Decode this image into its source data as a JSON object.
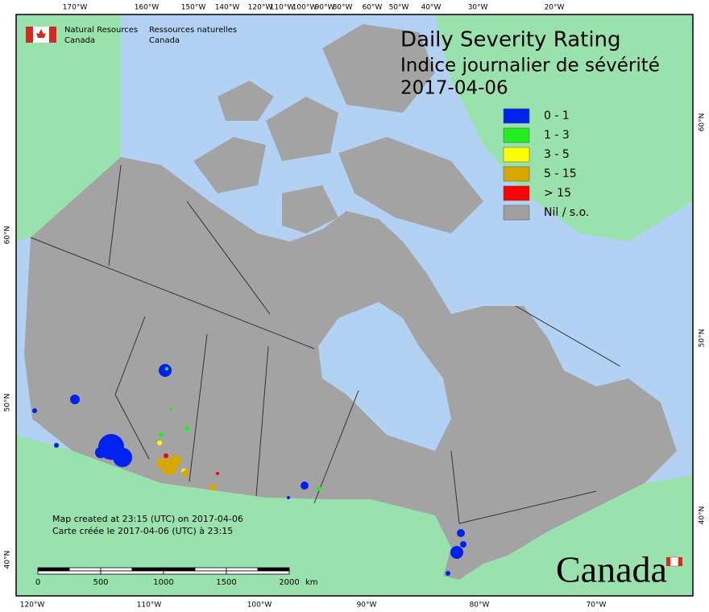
{
  "header": {
    "agency_en": [
      "Natural Resources",
      "Canada"
    ],
    "agency_fr": [
      "Ressources naturelles",
      "Canada"
    ]
  },
  "title": [
    "Daily Severity Rating",
    "Indice journalier de sévérité",
    "2017-04-06"
  ],
  "legend": [
    {
      "label": "0 - 1",
      "color": "#0022ee"
    },
    {
      "label": "1 - 3",
      "color": "#22ee22"
    },
    {
      "label": "3 - 5",
      "color": "#ffff00"
    },
    {
      "label": "5 - 15",
      "color": "#d8a800"
    },
    {
      "label": "> 15",
      "color": "#ff0000"
    },
    {
      "label": "Nil / s.o.",
      "color": "#a0a0a0"
    }
  ],
  "top_longitudes": [
    "170°W",
    "160°W",
    "150°W",
    "140°W",
    "120°W",
    "110°W",
    "100°W",
    "90°W",
    "80°W",
    "60°W",
    "50°W",
    "40°W",
    "30°W",
    "20°W"
  ],
  "bottom_longitudes": [
    "120°W",
    "110°W",
    "100°W",
    "90°W",
    "80°W",
    "70°W"
  ],
  "left_latitudes": [
    "60°N",
    "50°N",
    "40°N"
  ],
  "right_latitudes": [
    "60°N",
    "50°N",
    "40°N"
  ],
  "footnote": [
    "Map created at 23:15 (UTC) on 2017-04-06",
    "Carte créée le 2017-04-06 (UTC) à 23:15"
  ],
  "scale_bar": {
    "labels": [
      "0",
      "500",
      "1000",
      "1500",
      "2000"
    ],
    "unit": "km"
  },
  "wordmark": "Canada"
}
